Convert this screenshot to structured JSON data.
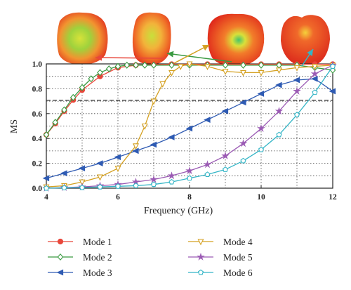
{
  "chart_data": {
    "type": "line",
    "title": "",
    "xlabel": "Frequency (GHz)",
    "ylabel": "MS",
    "xlim": [
      4,
      12
    ],
    "ylim": [
      0,
      1.0
    ],
    "xticks": [
      "4",
      "6",
      "8",
      "10",
      "12"
    ],
    "yticks": [
      "0.0",
      "0.2",
      "0.4",
      "0.6",
      "0.8",
      "1.0"
    ],
    "grid": true,
    "threshold": 0.707,
    "legend_position": "bottom",
    "series": [
      {
        "name": "Mode 1",
        "color": "#e8473b",
        "marker": "circle",
        "x": [
          4.0,
          4.25,
          4.5,
          4.75,
          5.0,
          5.5,
          6.0,
          6.5,
          7.0,
          7.5,
          8.0,
          8.5,
          9.0,
          9.5,
          10.0,
          10.5,
          11.0,
          11.5,
          12.0
        ],
        "y": [
          0.43,
          0.52,
          0.62,
          0.71,
          0.79,
          0.9,
          0.97,
          0.99,
          0.995,
          0.997,
          0.997,
          0.997,
          0.997,
          0.997,
          0.997,
          0.997,
          0.997,
          0.997,
          0.997
        ]
      },
      {
        "name": "Mode 2",
        "color": "#3a9a42",
        "marker": "diamond",
        "x": [
          4.0,
          4.25,
          4.5,
          4.75,
          5.0,
          5.25,
          5.5,
          5.75,
          6.0,
          6.25,
          6.5,
          6.75,
          7.0,
          7.5,
          8.0,
          8.5,
          9.0,
          9.5,
          10.0,
          10.5,
          11.0,
          11.5,
          12.0
        ],
        "y": [
          0.43,
          0.53,
          0.63,
          0.73,
          0.81,
          0.88,
          0.93,
          0.96,
          0.98,
          0.99,
          0.99,
          0.99,
          0.99,
          0.99,
          0.99,
          0.99,
          0.99,
          0.99,
          0.99,
          0.99,
          0.99,
          0.97,
          0.95
        ]
      },
      {
        "name": "Mode 3",
        "color": "#2f5bb3",
        "marker": "tri-left",
        "x": [
          4.0,
          4.5,
          5.0,
          5.5,
          6.0,
          6.5,
          7.0,
          7.5,
          8.0,
          8.5,
          9.0,
          9.5,
          10.0,
          10.5,
          11.0,
          11.5,
          12.0
        ],
        "y": [
          0.08,
          0.12,
          0.16,
          0.2,
          0.25,
          0.3,
          0.35,
          0.41,
          0.48,
          0.55,
          0.62,
          0.69,
          0.76,
          0.83,
          0.87,
          0.88,
          0.78
        ]
      },
      {
        "name": "Mode 4",
        "color": "#d4a021",
        "marker": "tri-down",
        "x": [
          4.0,
          4.5,
          5.0,
          5.5,
          6.0,
          6.5,
          6.75,
          7.0,
          7.25,
          7.5,
          7.75,
          8.0,
          8.5,
          9.0,
          9.5,
          10.0,
          10.5,
          11.0,
          11.5,
          12.0
        ],
        "y": [
          0.01,
          0.02,
          0.05,
          0.09,
          0.16,
          0.34,
          0.5,
          0.7,
          0.84,
          0.93,
          0.98,
          1.0,
          0.98,
          0.94,
          0.93,
          0.93,
          0.95,
          0.97,
          0.98,
          0.99
        ]
      },
      {
        "name": "Mode 5",
        "color": "#9b5bb4",
        "marker": "star",
        "x": [
          4.0,
          4.5,
          5.0,
          5.5,
          6.0,
          6.5,
          7.0,
          7.5,
          8.0,
          8.5,
          9.0,
          9.5,
          10.0,
          10.5,
          11.0,
          11.5,
          12.0
        ],
        "y": [
          0.0,
          0.005,
          0.01,
          0.02,
          0.03,
          0.05,
          0.07,
          0.1,
          0.14,
          0.19,
          0.26,
          0.36,
          0.48,
          0.62,
          0.78,
          0.92,
          0.99
        ]
      },
      {
        "name": "Mode 6",
        "color": "#33b5c6",
        "marker": "pentagon",
        "x": [
          4.0,
          4.5,
          5.0,
          5.5,
          6.0,
          6.5,
          7.0,
          7.5,
          8.0,
          8.5,
          9.0,
          9.5,
          10.0,
          10.5,
          11.0,
          11.5,
          12.0
        ],
        "y": [
          0.0,
          0.003,
          0.005,
          0.01,
          0.015,
          0.02,
          0.03,
          0.05,
          0.08,
          0.11,
          0.15,
          0.22,
          0.31,
          0.43,
          0.59,
          0.77,
          0.98
        ]
      }
    ]
  }
}
